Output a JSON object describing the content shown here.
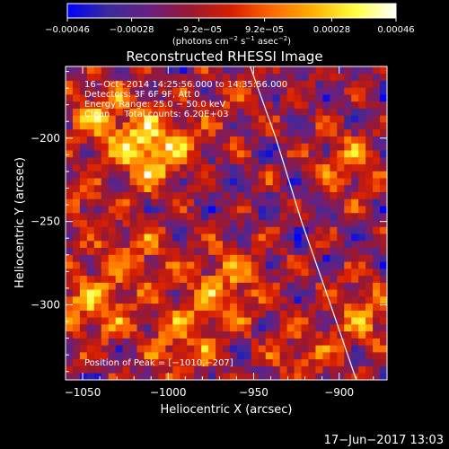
{
  "chart_data": {
    "type": "heatmap",
    "title": "Reconstructed RHESSI Image",
    "xlabel": "Heliocentric X (arcsec)",
    "ylabel": "Heliocentric Y (arcsec)",
    "xlim": [
      -1060,
      -872
    ],
    "ylim": [
      -345,
      -157
    ],
    "xticks": [
      -1050,
      -1000,
      -950,
      -900
    ],
    "xtick_labels": [
      "−1050",
      "−1000",
      "−950",
      "−900"
    ],
    "yticks": [
      -300,
      -250,
      -200
    ],
    "ytick_labels": [
      "−300",
      "−250",
      "−200"
    ],
    "colorbar": {
      "range": [
        -0.00046,
        0.00046
      ],
      "tick_values": [
        -0.00046,
        -0.00028,
        -9.2e-05,
        9.2e-05,
        0.00028,
        0.00046
      ],
      "tick_labels": [
        "−0.00046",
        "−0.00028",
        "−9.2e−05",
        "9.2e−05",
        "0.00028",
        "0.00046"
      ],
      "unit_main": "(photons cm",
      "unit_sup1": "−2",
      "unit_mid": " s",
      "unit_sup2": "−1",
      "unit_end": " asec",
      "unit_sup3": "−2",
      "unit_close": ")",
      "stops": [
        "#0000ff",
        "#3a2a9a",
        "#6a2080",
        "#9a1830",
        "#d81f00",
        "#ff6a00",
        "#ffb000",
        "#ffff40",
        "#ffffff"
      ]
    },
    "annotations": {
      "line1": "16−Oct−2014 14:25:56.000 to 14:35:56.000",
      "line2": "Detectors: 3F 6F 9F, Att 0",
      "line3": "Energy Range: 25.0 − 50.0 keV",
      "line4": "Clean     Total counts: 6.20E+03",
      "peak": "Position of Peak = [−1010,−207]"
    },
    "peak": [
      -1010,
      -207
    ],
    "limb_curve": [
      [
        -952,
        -157
      ],
      [
        -937,
        -200
      ],
      [
        -922,
        -250
      ],
      [
        -905,
        -300
      ],
      [
        -890,
        -345
      ]
    ]
  },
  "timestamp": "17−Jun−2017 13:03"
}
